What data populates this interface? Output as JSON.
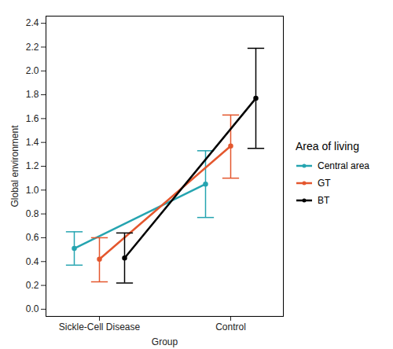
{
  "chart_data": {
    "type": "line",
    "x_label": "Group",
    "y_label": "Global environment",
    "legend_title": "Area of living",
    "categories": [
      "Sickle-Cell Disease",
      "Control"
    ],
    "series": [
      {
        "name": "Central area",
        "color": "#25a4b0",
        "values": [
          0.51,
          1.05
        ],
        "error_low": [
          0.37,
          0.77
        ],
        "error_high": [
          0.65,
          1.33
        ]
      },
      {
        "name": "GT",
        "color": "#e4572e",
        "values": [
          0.42,
          1.37
        ],
        "error_low": [
          0.23,
          1.1
        ],
        "error_high": [
          0.6,
          1.63
        ]
      },
      {
        "name": "BT",
        "color": "#000000",
        "values": [
          0.43,
          1.77
        ],
        "error_low": [
          0.22,
          1.35
        ],
        "error_high": [
          0.64,
          2.19
        ]
      }
    ],
    "ylim": [
      -0.06,
      2.46
    ],
    "yticks": [
      {
        "value": 0,
        "label": "0.0"
      },
      0.2,
      0.4,
      0.6,
      0.8,
      {
        "value": 1,
        "label": "1.0"
      },
      1.2,
      1.4,
      1.6,
      1.8,
      {
        "value": 2,
        "label": "2.0"
      },
      2.2,
      2.4
    ],
    "legend": "right",
    "marker": "circle",
    "grid": false
  }
}
